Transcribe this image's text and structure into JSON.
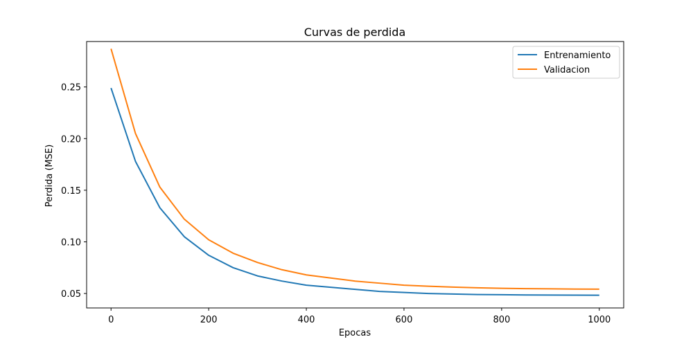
{
  "chart_data": {
    "type": "line",
    "title": "Curvas de perdida",
    "xlabel": "Epocas",
    "ylabel": "Perdida (MSE)",
    "xlim": [
      -50,
      1050
    ],
    "ylim": [
      0.036,
      0.294
    ],
    "xticks": [
      0,
      200,
      400,
      600,
      800,
      1000
    ],
    "xtick_labels": [
      "0",
      "200",
      "400",
      "600",
      "800",
      "1000"
    ],
    "yticks": [
      0.05,
      0.1,
      0.15,
      0.2,
      0.25
    ],
    "ytick_labels": [
      "0.05",
      "0.10",
      "0.15",
      "0.20",
      "0.25"
    ],
    "grid": false,
    "legend_position": "top-right",
    "series": [
      {
        "name": "Entrenamiento",
        "color": "#1f77b4",
        "x": [
          0,
          50,
          100,
          150,
          200,
          250,
          300,
          350,
          400,
          450,
          500,
          550,
          600,
          650,
          700,
          750,
          800,
          850,
          900,
          950,
          1000
        ],
        "y": [
          0.249,
          0.178,
          0.133,
          0.105,
          0.087,
          0.075,
          0.067,
          0.062,
          0.058,
          0.056,
          0.054,
          0.052,
          0.051,
          0.05,
          0.0495,
          0.049,
          0.0488,
          0.0486,
          0.0485,
          0.0484,
          0.0483
        ]
      },
      {
        "name": "Validacion",
        "color": "#ff7f0e",
        "x": [
          0,
          50,
          100,
          150,
          200,
          250,
          300,
          350,
          400,
          450,
          500,
          550,
          600,
          650,
          700,
          750,
          800,
          850,
          900,
          950,
          1000
        ],
        "y": [
          0.287,
          0.205,
          0.153,
          0.122,
          0.102,
          0.089,
          0.08,
          0.073,
          0.068,
          0.065,
          0.062,
          0.06,
          0.058,
          0.057,
          0.0562,
          0.0555,
          0.055,
          0.0547,
          0.0545,
          0.0543,
          0.0542
        ]
      }
    ]
  }
}
